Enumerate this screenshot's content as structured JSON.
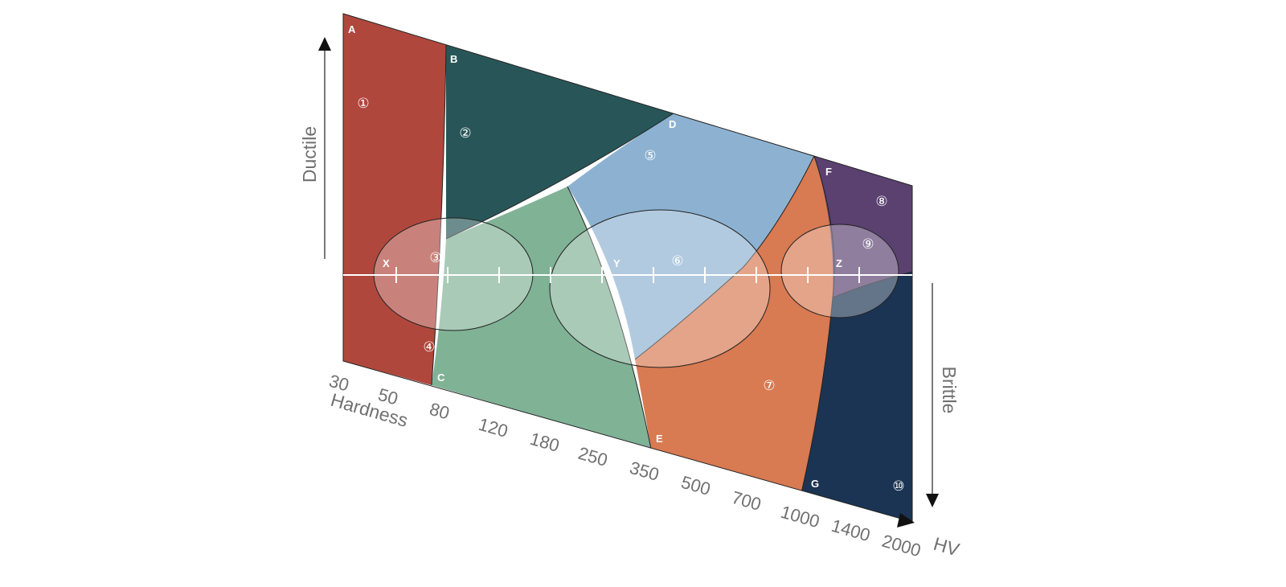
{
  "colors": {
    "region_1": "#b0473d",
    "region_2_3": "#285658",
    "region_4": "#80b296",
    "region_5_6": "#8db2d1",
    "region_7": "#d87a52",
    "region_8_9": "#5a4170",
    "region_10": "#1b3453",
    "axis_line": "#ffffff",
    "text": "#707070"
  },
  "region_letters": [
    "A",
    "B",
    "C",
    "D",
    "E",
    "F",
    "G"
  ],
  "region_numbers": [
    "①",
    "②",
    "③",
    "④",
    "⑤",
    "⑥",
    "⑦",
    "⑧",
    "⑨",
    "⑩"
  ],
  "zones": [
    "X",
    "Y",
    "Z"
  ],
  "axes": {
    "vertical_top": "Ductile",
    "vertical_bottom": "Brittle",
    "horizontal_title": "Hardness",
    "unit": "HV",
    "tick_labels": [
      "30",
      "50",
      "80",
      "120",
      "180",
      "250",
      "350",
      "500",
      "700",
      "1000",
      "1400",
      "2000"
    ]
  }
}
